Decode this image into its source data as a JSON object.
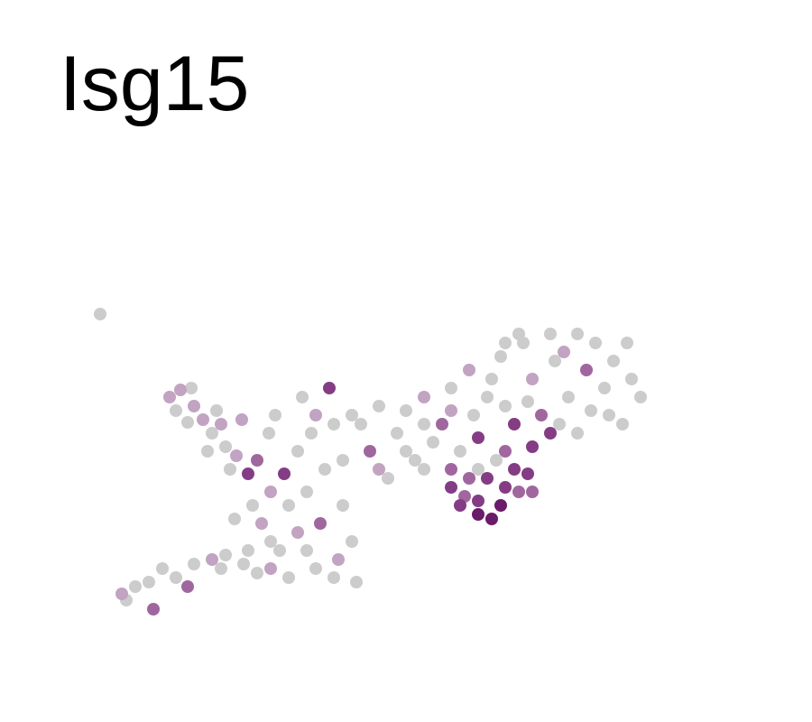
{
  "chart_data": {
    "type": "scatter",
    "title": "Isg15",
    "xlim": [
      10,
      73
    ],
    "ylim": [
      9,
      47
    ],
    "x": [
      11.1,
      18.8,
      20.0,
      21.2,
      19.5,
      21.5,
      20.8,
      22.5,
      23.5,
      24.5,
      23.0,
      25.0,
      26.2,
      26.8,
      25.5,
      27.5,
      28.5,
      24.0,
      30.5,
      29.8,
      31.5,
      30.0,
      32.0,
      34.0,
      33.0,
      34.5,
      33.5,
      35.0,
      36.5,
      37.0,
      36.0,
      35.5,
      33.0,
      30.0,
      29.0,
      28.0,
      26.0,
      31.0,
      34.0,
      38.0,
      39.0,
      37.5,
      39.5,
      37.0,
      35.0,
      13.5,
      15.0,
      14.0,
      17.0,
      16.5,
      18.0,
      19.5,
      20.8,
      21.5,
      23.5,
      25.0,
      27.0,
      28.5,
      30.0,
      32.0,
      27.5,
      24.5,
      40.0,
      41.0,
      42.0,
      43.0,
      44.0,
      45.0,
      46.0,
      47.0,
      48.0,
      49.0,
      50.0,
      51.0,
      52.0,
      52.5,
      53.0,
      54.5,
      55.5,
      56.0,
      57.0,
      58.0,
      59.0,
      60.0,
      61.0,
      61.5,
      62.5,
      63.0,
      64.0,
      65.0,
      65.5,
      66.0,
      67.0,
      68.0,
      69.0,
      70.0,
      71.0,
      69.5,
      62.0,
      64.0,
      67.5,
      58.5,
      54.0,
      50.0,
      47.0,
      45.0,
      42.0,
      38.0,
      39.0,
      47.0,
      50.0,
      53.0,
      56.0,
      59.0,
      61.0,
      57.5,
      56.0,
      50.0,
      51.5,
      53.0,
      54.5,
      53.0,
      55.5,
      56.0,
      57.5,
      58.5,
      57.0,
      52.0,
      54.0,
      55.0,
      59.0,
      51.0
    ],
    "values": [
      45.2,
      36.0,
      36.8,
      37.0,
      34.5,
      35.0,
      33.2,
      33.5,
      32.0,
      33.0,
      30.0,
      30.5,
      29.5,
      33.5,
      28.0,
      27.5,
      29.0,
      34.5,
      34.0,
      32.0,
      27.5,
      25.5,
      24.0,
      25.5,
      30.0,
      32.0,
      36.0,
      34.0,
      37.0,
      33.0,
      28.0,
      22.0,
      21.0,
      20.0,
      22.0,
      24.0,
      22.5,
      19.0,
      19.0,
      24.0,
      20.0,
      18.0,
      15.5,
      16.0,
      17.0,
      14.2,
      15.0,
      13.5,
      12.5,
      15.5,
      17.0,
      16.0,
      15.0,
      17.5,
      18.0,
      18.5,
      17.5,
      16.5,
      17.0,
      16.0,
      19.0,
      17.0,
      33.0,
      30.0,
      35.0,
      27.0,
      32.0,
      34.5,
      29.0,
      36.0,
      31.0,
      33.0,
      37.0,
      30.0,
      39.0,
      34.0,
      31.5,
      38.0,
      40.5,
      35.0,
      33.0,
      42.0,
      38.0,
      34.0,
      43.0,
      40.0,
      41.0,
      36.0,
      43.0,
      39.0,
      34.5,
      42.0,
      37.0,
      40.0,
      33.0,
      38.0,
      36.0,
      42.0,
      33.0,
      32.0,
      34.0,
      35.5,
      36.0,
      34.5,
      33.0,
      30.0,
      28.0,
      29.0,
      34.0,
      28.0,
      28.0,
      28.0,
      30.0,
      30.5,
      32.0,
      43.0,
      42.0,
      26.0,
      25.0,
      24.5,
      22.5,
      23.0,
      24.0,
      26.0,
      25.5,
      27.5,
      28.0,
      27.0,
      27.0,
      29.0,
      25.5,
      24.0
    ],
    "colors": [
      "#cccccc",
      "#c2a3c2",
      "#c2a3c2",
      "#cccccc",
      "#cccccc",
      "#c2a3c2",
      "#cccccc",
      "#c2a3c2",
      "#cccccc",
      "#c2a3c2",
      "#cccccc",
      "#cccccc",
      "#c2a3c2",
      "#c2a3c2",
      "#cccccc",
      "#843d84",
      "#a0679f",
      "#cccccc",
      "#cccccc",
      "#cccccc",
      "#843d84",
      "#c2a3c2",
      "#cccccc",
      "#cccccc",
      "#cccccc",
      "#cccccc",
      "#cccccc",
      "#c2a3c2",
      "#843d84",
      "#cccccc",
      "#cccccc",
      "#a0679f",
      "#c2a3c2",
      "#cccccc",
      "#c2a3c2",
      "#cccccc",
      "#cccccc",
      "#cccccc",
      "#cccccc",
      "#cccccc",
      "#cccccc",
      "#c2a3c2",
      "#cccccc",
      "#cccccc",
      "#cccccc",
      "#c2a3c2",
      "#cccccc",
      "#cccccc",
      "#a0679f",
      "#cccccc",
      "#cccccc",
      "#cccccc",
      "#a0679f",
      "#cccccc",
      "#c2a3c2",
      "#cccccc",
      "#cccccc",
      "#cccccc",
      "#c2a3c2",
      "#cccccc",
      "#cccccc",
      "#cccccc",
      "#cccccc",
      "#a0679f",
      "#cccccc",
      "#cccccc",
      "#cccccc",
      "#cccccc",
      "#cccccc",
      "#c2a3c2",
      "#cccccc",
      "#a0679f",
      "#cccccc",
      "#cccccc",
      "#c2a3c2",
      "#cccccc",
      "#843d84",
      "#cccccc",
      "#cccccc",
      "#cccccc",
      "#843d84",
      "#cccccc",
      "#c2a3c2",
      "#a0679f",
      "#cccccc",
      "#cccccc",
      "#c2a3c2",
      "#cccccc",
      "#cccccc",
      "#a0679f",
      "#cccccc",
      "#cccccc",
      "#cccccc",
      "#cccccc",
      "#cccccc",
      "#cccccc",
      "#cccccc",
      "#cccccc",
      "#cccccc",
      "#cccccc",
      "#cccccc",
      "#cccccc",
      "#cccccc",
      "#c2a3c2",
      "#cccccc",
      "#cccccc",
      "#c2a3c2",
      "#cccccc",
      "#cccccc",
      "#cccccc",
      "#a0679f",
      "#cccccc",
      "#a0679f",
      "#843d84",
      "#843d84",
      "#cccccc",
      "#cccccc",
      "#843d84",
      "#a0679f",
      "#843d84",
      "#6a1b6a",
      "#6a1b6a",
      "#6a1b6a",
      "#843d84",
      "#a0679f",
      "#843d84",
      "#843d84",
      "#a0679f",
      "#843d84",
      "#cccccc",
      "#a0679f",
      "#843d84"
    ]
  }
}
